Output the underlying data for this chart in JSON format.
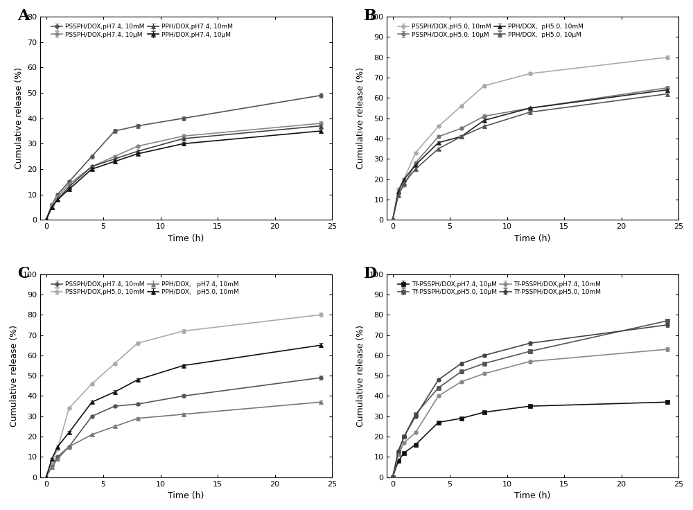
{
  "time_points": [
    0,
    0.5,
    1,
    2,
    4,
    6,
    8,
    12,
    24
  ],
  "A": {
    "title": "A",
    "ylim": [
      0,
      80
    ],
    "yticks": [
      0,
      10,
      20,
      30,
      40,
      50,
      60,
      70,
      80
    ],
    "series": [
      {
        "label": "PSSPH/DOX,pH7.4, 10mM",
        "color": "#555555",
        "marker": "o",
        "markersize": 4,
        "linestyle": "-",
        "linewidth": 1.2,
        "values": [
          0,
          6,
          10,
          15,
          25,
          35,
          37,
          40,
          49
        ],
        "errors": [
          0,
          0.5,
          0.5,
          0.5,
          0.8,
          0.8,
          0.8,
          0.8,
          1.0
        ]
      },
      {
        "label": "PSSPH/DOX,pH7.4, 10μM",
        "color": "#888888",
        "marker": "o",
        "markersize": 4,
        "linestyle": "-",
        "linewidth": 1.2,
        "values": [
          0,
          6,
          9,
          14,
          21,
          25,
          29,
          33,
          38
        ],
        "errors": [
          0,
          0.4,
          0.4,
          0.4,
          0.5,
          0.5,
          0.5,
          0.6,
          0.8
        ]
      },
      {
        "label": "PPH/DOX,pH7.4, 10mM",
        "color": "#444444",
        "marker": "^",
        "markersize": 4,
        "linestyle": "-",
        "linewidth": 1.2,
        "values": [
          0,
          5,
          8,
          13,
          21,
          24,
          27,
          32,
          37
        ],
        "errors": [
          0,
          0.4,
          0.4,
          0.4,
          0.5,
          0.5,
          0.5,
          0.6,
          0.8
        ]
      },
      {
        "label": "PPH/DOX,pH7.4, 10μM",
        "color": "#111111",
        "marker": "^",
        "markersize": 4,
        "linestyle": "-",
        "linewidth": 1.2,
        "values": [
          0,
          5,
          8,
          12,
          20,
          23,
          26,
          30,
          35
        ],
        "errors": [
          0,
          0.4,
          0.4,
          0.4,
          0.5,
          0.5,
          0.5,
          0.6,
          0.8
        ]
      }
    ]
  },
  "B": {
    "title": "B",
    "ylim": [
      0,
      100
    ],
    "yticks": [
      0,
      10,
      20,
      30,
      40,
      50,
      60,
      70,
      80,
      90,
      100
    ],
    "series": [
      {
        "label": "PSSPH/DOX,pH5.0, 10mM",
        "color": "#aaaaaa",
        "marker": "o",
        "markersize": 4,
        "linestyle": "-",
        "linewidth": 1.2,
        "values": [
          0,
          15,
          20,
          33,
          46,
          56,
          66,
          72,
          80
        ],
        "errors": [
          0,
          0.5,
          0.5,
          0.6,
          0.7,
          0.8,
          0.8,
          0.9,
          1.0
        ]
      },
      {
        "label": "PSSPH/DOX,pH5.0, 10μM",
        "color": "#777777",
        "marker": "o",
        "markersize": 4,
        "linestyle": "-",
        "linewidth": 1.2,
        "values": [
          0,
          13,
          17,
          28,
          41,
          45,
          51,
          55,
          65
        ],
        "errors": [
          0,
          0.5,
          0.5,
          0.6,
          0.7,
          0.7,
          0.8,
          0.8,
          0.9
        ]
      },
      {
        "label": "PPH/DOX,  pH5.0, 10mM",
        "color": "#222222",
        "marker": "^",
        "markersize": 4,
        "linestyle": "-",
        "linewidth": 1.2,
        "values": [
          0,
          14,
          20,
          27,
          38,
          41,
          49,
          55,
          64
        ],
        "errors": [
          0,
          0.5,
          0.5,
          0.6,
          0.7,
          0.7,
          0.8,
          0.8,
          0.9
        ]
      },
      {
        "label": "PPH/DOX,  pH5.0, 10μM",
        "color": "#555555",
        "marker": "^",
        "markersize": 4,
        "linestyle": "-",
        "linewidth": 1.2,
        "values": [
          0,
          12,
          18,
          25,
          35,
          41,
          46,
          53,
          62
        ],
        "errors": [
          0,
          0.5,
          0.5,
          0.6,
          0.7,
          0.7,
          0.8,
          0.8,
          0.9
        ]
      }
    ]
  },
  "C": {
    "title": "C",
    "ylim": [
      0,
      100
    ],
    "yticks": [
      0,
      10,
      20,
      30,
      40,
      50,
      60,
      70,
      80,
      90,
      100
    ],
    "series": [
      {
        "label": "PSSPH/DOX,pH7.4, 10mM",
        "color": "#555555",
        "marker": "o",
        "markersize": 4,
        "linestyle": "-",
        "linewidth": 1.2,
        "values": [
          0,
          6,
          10,
          15,
          30,
          35,
          36,
          40,
          49
        ],
        "errors": [
          0,
          0.4,
          0.4,
          0.5,
          0.6,
          0.7,
          0.7,
          0.8,
          1.0
        ]
      },
      {
        "label": "PSSPH/DOX,pH5.0, 10mM",
        "color": "#aaaaaa",
        "marker": "o",
        "markersize": 4,
        "linestyle": "-",
        "linewidth": 1.2,
        "values": [
          0,
          7,
          14,
          34,
          46,
          56,
          66,
          72,
          80
        ],
        "errors": [
          0,
          0.5,
          0.5,
          0.7,
          0.8,
          0.8,
          0.9,
          1.0,
          1.0
        ]
      },
      {
        "label": "PPH/DOX,   pH7.4, 10mM",
        "color": "#777777",
        "marker": "^",
        "markersize": 4,
        "linestyle": "-",
        "linewidth": 1.2,
        "values": [
          0,
          5,
          9,
          15,
          21,
          25,
          29,
          31,
          37
        ],
        "errors": [
          0,
          0.4,
          0.4,
          0.5,
          0.5,
          0.6,
          0.6,
          0.7,
          0.8
        ]
      },
      {
        "label": "PPH/DOX,   pH5.0, 10mM",
        "color": "#111111",
        "marker": "^",
        "markersize": 4,
        "linestyle": "-",
        "linewidth": 1.2,
        "values": [
          0,
          9,
          15,
          22,
          37,
          42,
          48,
          55,
          65
        ],
        "errors": [
          0,
          0.5,
          0.5,
          0.6,
          0.7,
          0.8,
          0.8,
          0.9,
          1.0
        ]
      }
    ]
  },
  "D": {
    "title": "D",
    "ylim": [
      0,
      100
    ],
    "yticks": [
      0,
      10,
      20,
      30,
      40,
      50,
      60,
      70,
      80,
      90,
      100
    ],
    "series": [
      {
        "label": "Tf-PSSPH/DOX,pH7.4, 10μM",
        "color": "#111111",
        "marker": "s",
        "markersize": 4,
        "linestyle": "-",
        "linewidth": 1.2,
        "values": [
          0,
          8,
          12,
          16,
          27,
          29,
          32,
          35,
          37
        ],
        "errors": [
          0,
          0.5,
          0.5,
          0.6,
          0.6,
          0.7,
          0.7,
          0.7,
          0.8
        ]
      },
      {
        "label": "Tf-PSSPH/DOX,pH5.0, 10μM",
        "color": "#555555",
        "marker": "s",
        "markersize": 4,
        "linestyle": "-",
        "linewidth": 1.2,
        "values": [
          0,
          12,
          20,
          31,
          44,
          52,
          56,
          62,
          77
        ],
        "errors": [
          0,
          0.5,
          0.5,
          0.6,
          0.7,
          0.8,
          0.8,
          0.9,
          1.0
        ]
      },
      {
        "label": "Tf-PSSPH/DOX,pH7.4, 10mM",
        "color": "#888888",
        "marker": "o",
        "markersize": 4,
        "linestyle": "-",
        "linewidth": 1.2,
        "values": [
          0,
          11,
          17,
          22,
          40,
          47,
          51,
          57,
          63
        ],
        "errors": [
          0,
          0.5,
          0.5,
          0.6,
          0.6,
          0.7,
          0.7,
          0.8,
          0.9
        ]
      },
      {
        "label": "Tf-PSSPH/DOX,pH5.0, 10mM",
        "color": "#444444",
        "marker": "o",
        "markersize": 4,
        "linestyle": "-",
        "linewidth": 1.2,
        "values": [
          0,
          13,
          20,
          30,
          48,
          56,
          60,
          66,
          75
        ],
        "errors": [
          0,
          0.5,
          0.5,
          0.6,
          0.7,
          0.8,
          0.8,
          0.8,
          0.9
        ]
      }
    ]
  },
  "xlabel": "Time (h)",
  "ylabel": "Cumulative release (%)",
  "xticks": [
    0,
    5,
    10,
    15,
    20,
    25
  ],
  "xlim": [
    -0.5,
    25
  ],
  "background_color": "#ffffff",
  "plot_background": "#ffffff",
  "legend_fontsize": 6.5,
  "tick_fontsize": 8,
  "label_fontsize": 9
}
